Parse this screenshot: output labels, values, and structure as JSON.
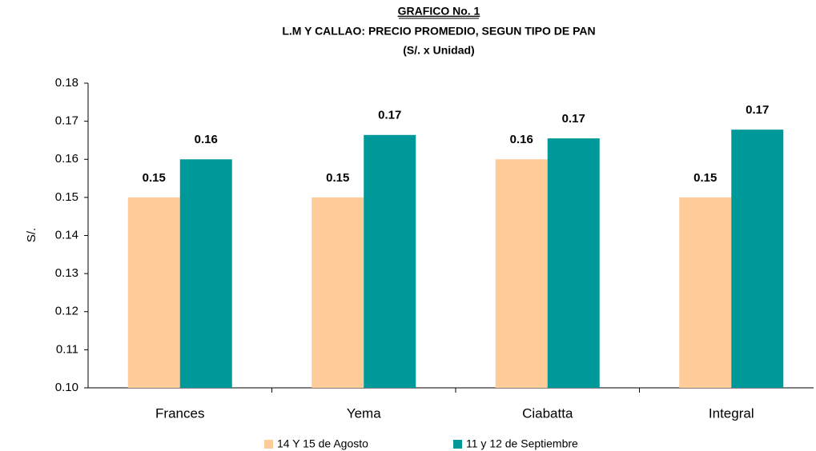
{
  "chart_data": {
    "type": "bar",
    "title": "GRAFICO No. 1",
    "subtitle": "L.M Y CALLAO: PRECIO PROMEDIO, SEGUN TIPO DE PAN",
    "unit_note": "(S/. x Unidad)",
    "y_label": "S/.",
    "categories": [
      "Frances",
      "Yema",
      "Ciabatta",
      "Integral"
    ],
    "series": [
      {
        "name": "14 Y 15 de Agosto",
        "color": "#ffcc99",
        "values": [
          0.15,
          0.15,
          0.16,
          0.15
        ]
      },
      {
        "name": "11 y 12 de Septiembre",
        "color": "#009999",
        "values": [
          0.16,
          0.1664,
          0.1655,
          0.1678
        ],
        "value_labels": [
          "0.16",
          "0.17",
          "0.17",
          "0.17"
        ]
      }
    ],
    "ylim": [
      0.1,
      0.18
    ],
    "yticks": [
      {
        "value": 0.1,
        "label": "0.10"
      },
      0.11,
      0.12,
      0.13,
      0.14,
      0.15,
      0.16,
      0.17,
      0.18
    ],
    "legend": "bottom"
  }
}
